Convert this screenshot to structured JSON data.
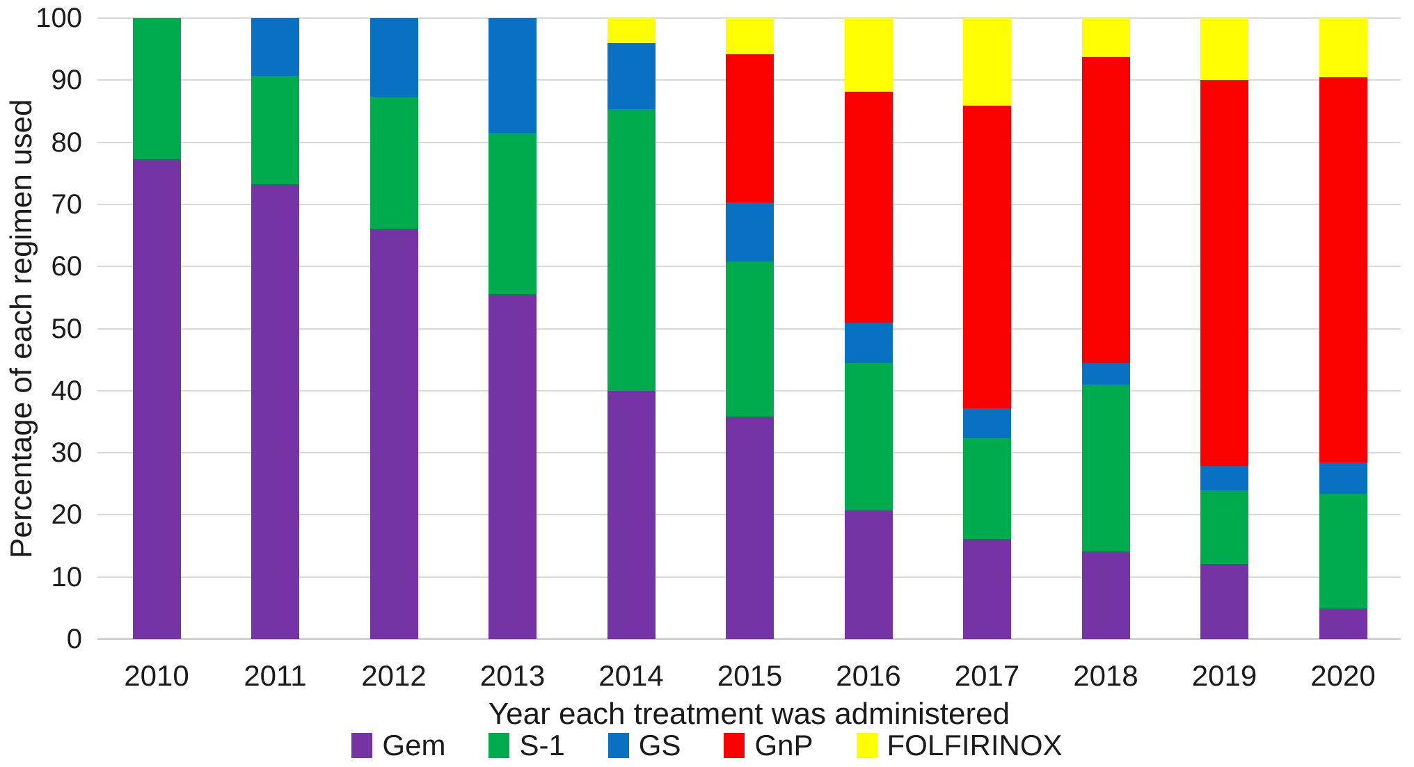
{
  "figure": {
    "background": "#ffffff",
    "text_color": "#1b1b1b",
    "gridline_color": "#d9d9d9",
    "axis_line_color": "#c6c6c6"
  },
  "chart_data": {
    "type": "bar",
    "stacked": true,
    "title": "",
    "xlabel": "Year each treatment was administered",
    "ylabel": "Percentage of each regimen used",
    "categories": [
      "2010",
      "2011",
      "2012",
      "2013",
      "2014",
      "2015",
      "2016",
      "2017",
      "2018",
      "2019",
      "2020"
    ],
    "series": [
      {
        "name": "Gem",
        "color": "#7633a5",
        "values": [
          77.3,
          73.2,
          66.1,
          55.6,
          40.0,
          35.8,
          20.7,
          16.1,
          14.1,
          12.1,
          4.9
        ]
      },
      {
        "name": "S-1",
        "color": "#00ab4e",
        "values": [
          22.7,
          17.5,
          21.3,
          25.9,
          45.3,
          25.0,
          23.8,
          16.3,
          26.9,
          11.9,
          18.5
        ]
      },
      {
        "name": "GS",
        "color": "#0971c1",
        "values": [
          0.0,
          9.3,
          12.6,
          18.5,
          10.7,
          9.5,
          6.5,
          4.8,
          3.5,
          3.9,
          5.0
        ]
      },
      {
        "name": "GnP",
        "color": "#fa0000",
        "values": [
          0.0,
          0.0,
          0.0,
          0.0,
          0.0,
          23.9,
          37.1,
          48.7,
          49.2,
          62.1,
          62.1
        ]
      },
      {
        "name": "FOLFIRINOX",
        "color": "#fefe00",
        "values": [
          0.0,
          0.0,
          0.0,
          0.0,
          4.0,
          5.8,
          11.9,
          14.1,
          6.3,
          10.0,
          9.5
        ]
      }
    ],
    "ylim": [
      0,
      100
    ],
    "y_ticks": [
      0,
      10,
      20,
      30,
      40,
      50,
      60,
      70,
      80,
      90,
      100
    ],
    "grid": true,
    "legend_position": "bottom"
  }
}
